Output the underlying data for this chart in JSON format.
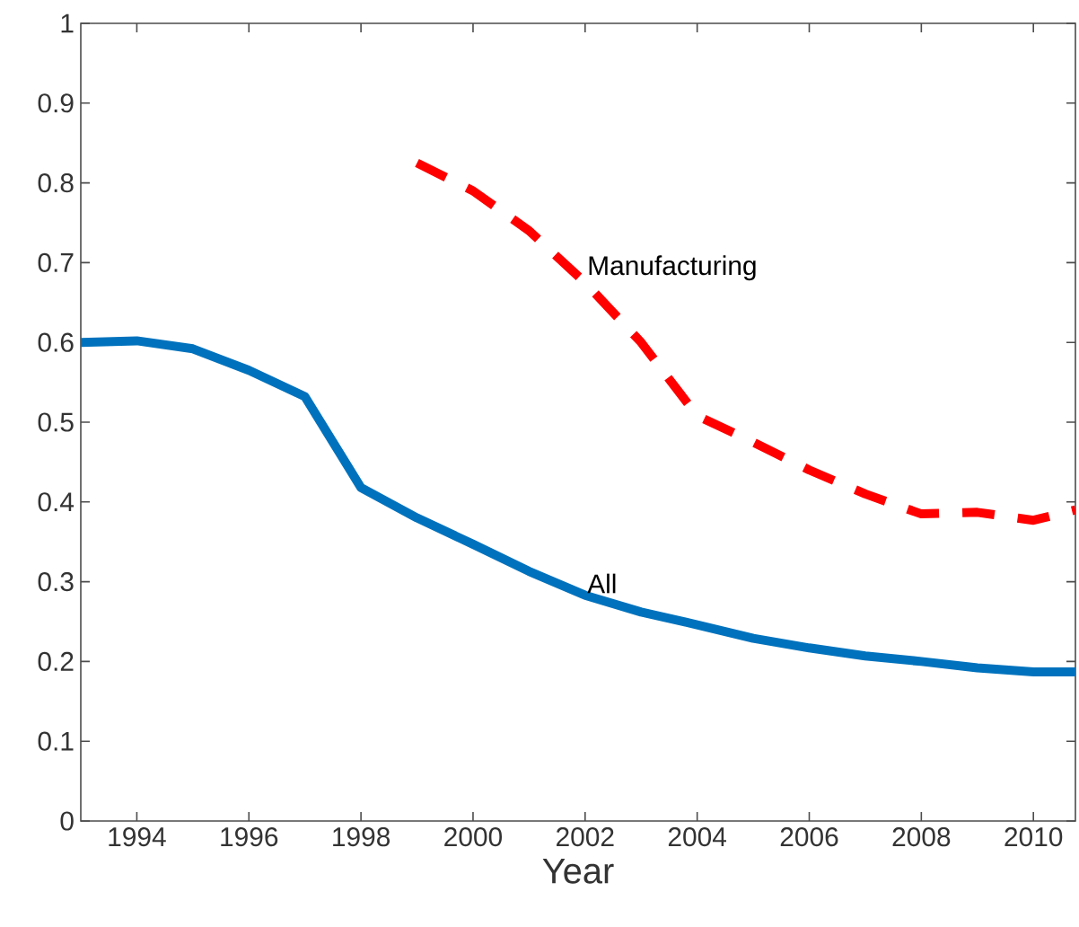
{
  "chart_data": {
    "type": "line",
    "xlabel": "Year",
    "xlim": [
      1993,
      2010.75
    ],
    "ylim": [
      0,
      1
    ],
    "xticks": [
      1994,
      1996,
      1998,
      2000,
      2002,
      2004,
      2006,
      2008,
      2010
    ],
    "yticks": [
      0,
      0.1,
      0.2,
      0.3,
      0.4,
      0.5,
      0.6,
      0.7,
      0.8,
      0.9,
      1
    ],
    "series": [
      {
        "name": "Manufacturing",
        "color": "#ff0000",
        "line_style": "dashed",
        "x": [
          1999,
          2000,
          2001,
          2002,
          2003,
          2004,
          2005,
          2006,
          2007,
          2008,
          2009,
          2010,
          2010.75
        ],
        "values": [
          0.825,
          0.79,
          0.74,
          0.675,
          0.6,
          0.508,
          0.475,
          0.44,
          0.41,
          0.385,
          0.387,
          0.377,
          0.39
        ]
      },
      {
        "name": "All",
        "color": "#0072bd",
        "line_style": "solid",
        "x": [
          1993,
          1994,
          1995,
          1996,
          1997,
          1998,
          1999,
          2000,
          2001,
          2002,
          2003,
          2004,
          2005,
          2006,
          2007,
          2008,
          2009,
          2010,
          2010.75
        ],
        "values": [
          0.6,
          0.602,
          0.592,
          0.565,
          0.532,
          0.418,
          0.38,
          0.347,
          0.313,
          0.283,
          0.262,
          0.246,
          0.229,
          0.217,
          0.207,
          0.2,
          0.192,
          0.187,
          0.187
        ]
      }
    ]
  }
}
